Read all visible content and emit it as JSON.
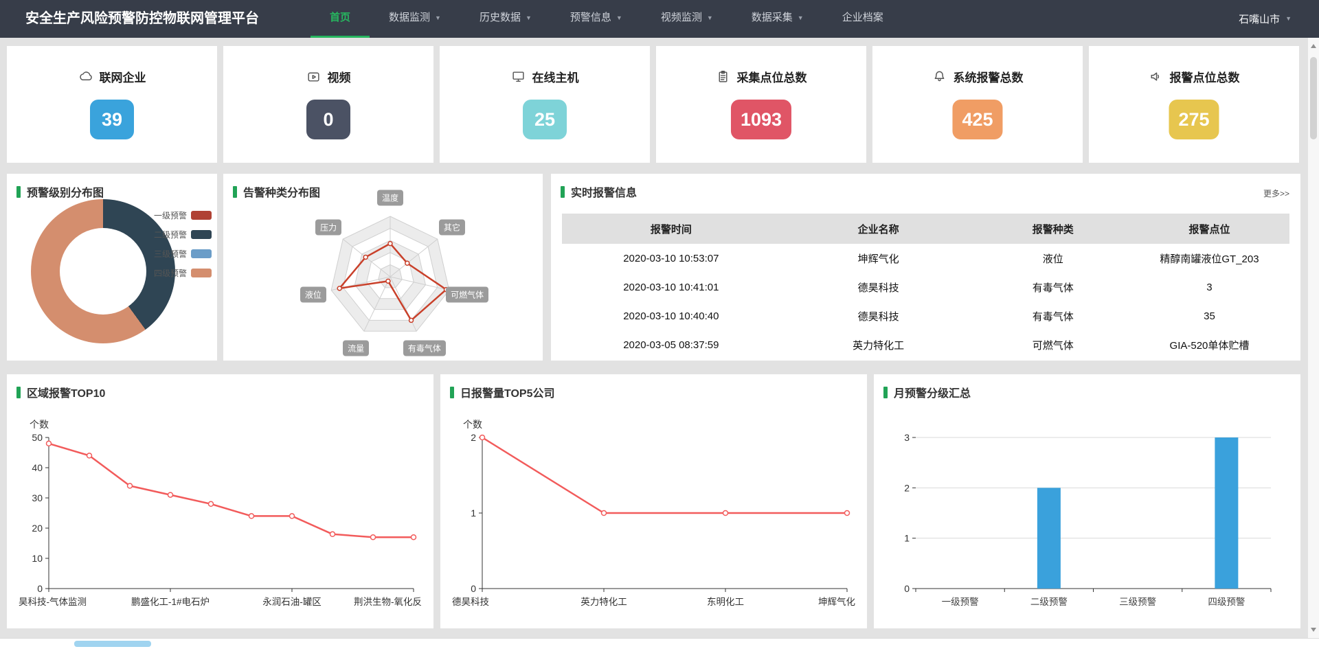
{
  "nav": {
    "title": "安全生产风险预警防控物联网管理平台",
    "items": [
      {
        "label": "首页",
        "active": true,
        "caret": false
      },
      {
        "label": "数据监测",
        "active": false,
        "caret": true
      },
      {
        "label": "历史数据",
        "active": false,
        "caret": true
      },
      {
        "label": "预警信息",
        "active": false,
        "caret": true
      },
      {
        "label": "视频监测",
        "active": false,
        "caret": true
      },
      {
        "label": "数据采集",
        "active": false,
        "caret": true
      },
      {
        "label": "企业档案",
        "active": false,
        "caret": false
      }
    ],
    "region": "石嘴山市",
    "accent_green": "#27b55f"
  },
  "stats": [
    {
      "label": "联网企业",
      "value": "39",
      "color": "#3aa3dc",
      "icon": "cloud-icon"
    },
    {
      "label": "视频",
      "value": "0",
      "color": "#4b5264",
      "icon": "video-icon"
    },
    {
      "label": "在线主机",
      "value": "25",
      "color": "#7ed3d8",
      "icon": "monitor-icon"
    },
    {
      "label": "采集点位总数",
      "value": "1093",
      "color": "#e05566",
      "icon": "clipboard-icon"
    },
    {
      "label": "系统报警总数",
      "value": "425",
      "color": "#f09d64",
      "icon": "bell-icon"
    },
    {
      "label": "报警点位总数",
      "value": "275",
      "color": "#e7c64f",
      "icon": "speaker-icon"
    }
  ],
  "panels": {
    "alarm_level": {
      "title": "预警级别分布图",
      "legend": [
        {
          "label": "一级预警",
          "color": "#b04134"
        },
        {
          "label": "二级预警",
          "color": "#2f4554"
        },
        {
          "label": "三级预警",
          "color": "#6b9dc8"
        },
        {
          "label": "四级预警",
          "color": "#d48e6e"
        }
      ],
      "chart_data": {
        "type": "pie",
        "donut": true,
        "segments": [
          {
            "name": "一级预警",
            "value": 0,
            "color": "#b04134"
          },
          {
            "name": "二级预警",
            "value": 2,
            "color": "#2f4554"
          },
          {
            "name": "三级预警",
            "value": 0,
            "color": "#6b9dc8"
          },
          {
            "name": "四级预警",
            "value": 3,
            "color": "#d48e6e"
          }
        ]
      }
    },
    "alarm_type": {
      "title": "告警种类分布图",
      "chart_data": {
        "type": "radar",
        "indicators": [
          "温度",
          "其它",
          "可燃气体",
          "有毒气体",
          "流量",
          "液位",
          "压力"
        ],
        "values_pct_of_max": [
          55,
          36,
          95,
          80,
          8,
          86,
          52
        ],
        "levels": 5,
        "line_color": "#c9402a"
      }
    },
    "realtime": {
      "title": "实时报警信息",
      "more_label": "更多>>",
      "table": {
        "headers": [
          "报警时间",
          "企业名称",
          "报警种类",
          "报警点位"
        ],
        "rows": [
          [
            "2020-03-10 10:53:07",
            "坤辉气化",
            "液位",
            "精醇南罐液位GT_203"
          ],
          [
            "2020-03-10 10:41:01",
            "德昊科技",
            "有毒气体",
            "3"
          ],
          [
            "2020-03-10 10:40:40",
            "德昊科技",
            "有毒气体",
            "35"
          ],
          [
            "2020-03-05 08:37:59",
            "英力特化工",
            "可燃气体",
            "GIA-520单体贮槽"
          ]
        ]
      }
    },
    "region_top10": {
      "title": "区域报警TOP10",
      "chart_data": {
        "type": "line",
        "ylabel": "个数",
        "ylim": [
          0,
          50
        ],
        "yticks": [
          0,
          10,
          20,
          30,
          40,
          50
        ],
        "values": [
          48,
          44,
          34,
          31,
          28,
          24,
          24,
          18,
          17,
          17
        ],
        "labels": [
          {
            "index": 0,
            "text": "昊科技-气体监测"
          },
          {
            "index": 3,
            "text": "鹏盛化工-1#电石炉"
          },
          {
            "index": 6,
            "text": "永润石油-罐区"
          },
          {
            "index": 9,
            "text": "荆洪生物-氧化反"
          }
        ],
        "line_color": "#f25b5b"
      }
    },
    "daily_top5": {
      "title": "日报警量TOP5公司",
      "chart_data": {
        "type": "line",
        "ylabel": "个数",
        "ylim": [
          0,
          2
        ],
        "yticks": [
          0,
          1,
          2
        ],
        "categories": [
          "德昊科技",
          "英力特化工",
          "东明化工",
          "坤辉气化"
        ],
        "values": [
          2,
          1,
          1,
          1
        ],
        "line_color": "#f25b5b"
      }
    },
    "monthly_summary": {
      "title": "月预警分级汇总",
      "chart_data": {
        "type": "bar",
        "ylim": [
          0,
          3
        ],
        "yticks": [
          0,
          1,
          2,
          3
        ],
        "categories": [
          "一级预警",
          "二级预警",
          "三级预警",
          "四级预警"
        ],
        "values": [
          0,
          2,
          0,
          3
        ],
        "grid": true,
        "bar_color": "#3aa1dc"
      }
    }
  }
}
